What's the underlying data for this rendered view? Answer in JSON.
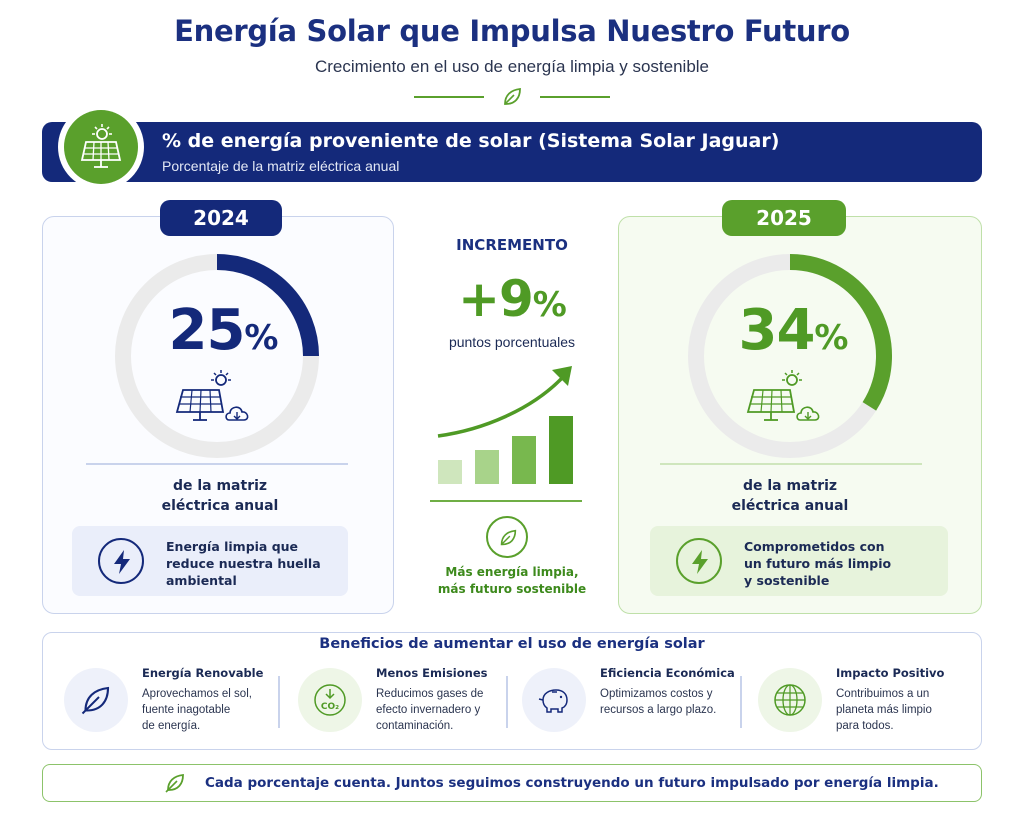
{
  "header": {
    "title": "Energía Solar que Impulsa Nuestro Futuro",
    "subtitle": "Crecimiento en el uso de energía limpia y sostenible"
  },
  "banner": {
    "title": "% de energía proveniente de solar (Sistema Solar Jaguar)",
    "subtitle": "Porcentaje de la matriz eléctrica anual",
    "icon": "solar-panel-sun-icon"
  },
  "colors": {
    "navy": "#14297a",
    "green": "#5aa02c",
    "ring_track": "#ebebeb"
  },
  "year_2024": {
    "year": "2024",
    "percent_value": "25",
    "percent_symbol": "%",
    "fraction": 0.25,
    "caption_line1": "de la matriz",
    "caption_line2": "eléctrica anual",
    "info_line1": "Energía limpia que",
    "info_line2": "reduce nuestra huella",
    "info_line3": "ambiental",
    "info_icon": "lightning-icon"
  },
  "year_2025": {
    "year": "2025",
    "percent_value": "34",
    "percent_symbol": "%",
    "fraction": 0.34,
    "caption_line1": "de la matriz",
    "caption_line2": "eléctrica anual",
    "info_line1": "Comprometidos con",
    "info_line2": "un futuro más limpio",
    "info_line3": "y sostenible",
    "info_icon": "lightning-icon"
  },
  "increment": {
    "label": "INCREMENTO",
    "value": "+9",
    "symbol": "%",
    "unit": "puntos porcentuales",
    "note_line1": "Más energía limpia,",
    "note_line2": "más futuro sostenible"
  },
  "benefits": {
    "title": "Beneficios de aumentar el uso de energía solar",
    "items": [
      {
        "icon": "leaf-icon",
        "title": "Energía Renovable",
        "line1": "Aprovechamos el sol,",
        "line2": "fuente inagotable",
        "line3": "de energía."
      },
      {
        "icon": "co2-reduction-icon",
        "title": "Menos Emisiones",
        "line1": "Reducimos gases de",
        "line2": "efecto invernadero y",
        "line3": "contaminación."
      },
      {
        "icon": "piggy-bank-icon",
        "title": "Eficiencia Económica",
        "line1": "Optimizamos costos y",
        "line2": "recursos a largo plazo.",
        "line3": ""
      },
      {
        "icon": "globe-icon",
        "title": "Impacto Positivo",
        "line1": "Contribuimos a un",
        "line2": "planeta más limpio",
        "line3": "para todos."
      }
    ]
  },
  "footer": {
    "text": "Cada porcentaje cuenta. Juntos seguimos construyendo un futuro impulsado por energía limpia.",
    "icon": "leaf-icon"
  }
}
